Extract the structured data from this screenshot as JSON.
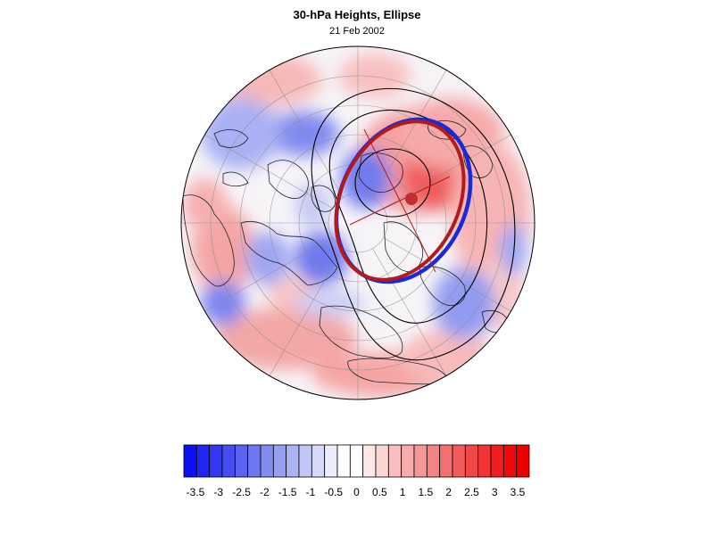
{
  "figure": {
    "title": "30-hPa Heights, Ellipse",
    "subtitle": "21 Feb 2002"
  },
  "colorbar": {
    "labels": [
      "-3.5",
      "-3",
      "-2.5",
      "-2",
      "-1.5",
      "-1",
      "-0.5",
      "0",
      "0.5",
      "1",
      "1.5",
      "2",
      "2.5",
      "3",
      "3.5"
    ],
    "colors": [
      "#0c10f5",
      "#2026f3",
      "#3339f2",
      "#474ef1",
      "#5a62f0",
      "#6e77ef",
      "#828bef",
      "#969ff0",
      "#abb3f2",
      "#c0c6f5",
      "#d6daf8",
      "#ebedfb",
      "#ffffff",
      "#ffffff",
      "#fde8e8",
      "#fbd4d4",
      "#f9bfbf",
      "#f8abab",
      "#f69797",
      "#f58383",
      "#f46f6f",
      "#f35b5b",
      "#f24747",
      "#f13333",
      "#f01f1f",
      "#ef0b0b",
      "#ee0000"
    ]
  },
  "map": {
    "projection": "polar stereographic (north pole)",
    "ellipse_colors": {
      "observed": "#1a2ad6",
      "fitted": "#b31b1b",
      "center": "#c03030"
    }
  }
}
